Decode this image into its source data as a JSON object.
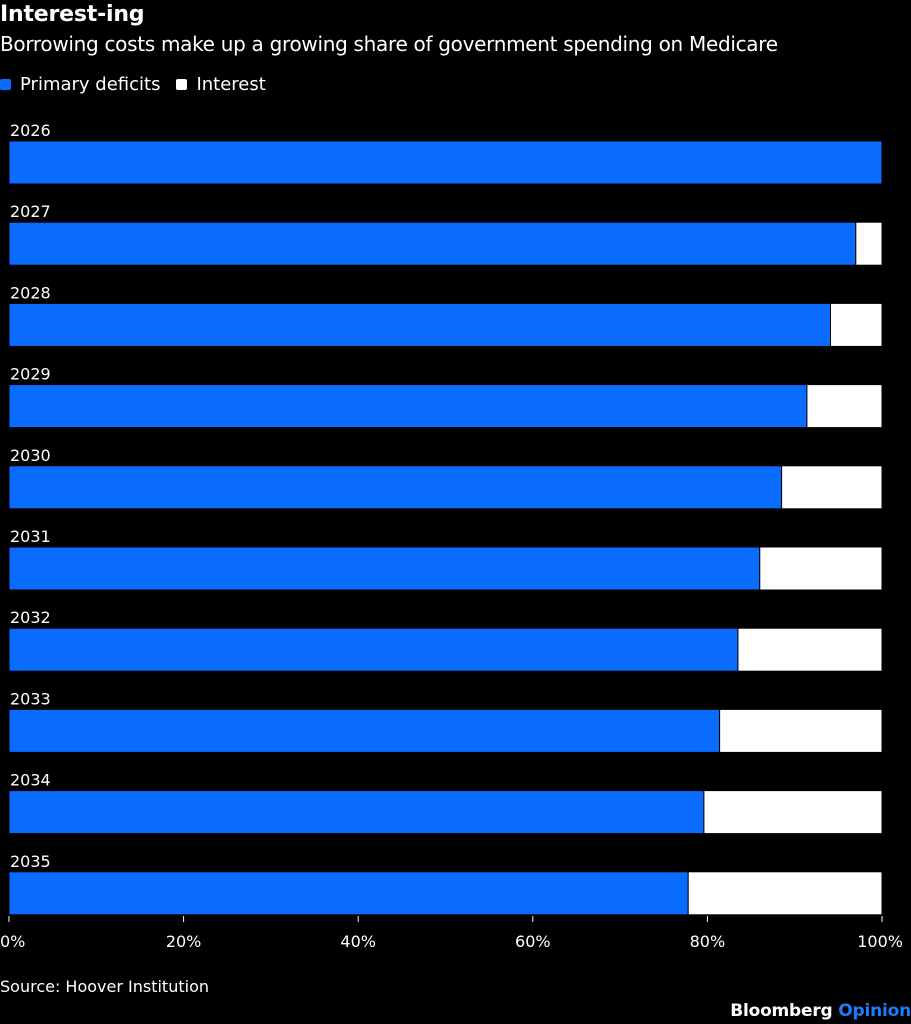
{
  "header": {
    "title": "Interest-ing",
    "subtitle": "Borrowing costs make up a growing share of government spending on Medicare"
  },
  "legend": [
    {
      "label": "Primary deficits",
      "color": "#0a6cff"
    },
    {
      "label": "Interest",
      "color": "#ffffff"
    }
  ],
  "chart_data": {
    "type": "bar",
    "orientation": "horizontal",
    "stacked": true,
    "categories": [
      "2026",
      "2027",
      "2028",
      "2029",
      "2030",
      "2031",
      "2032",
      "2033",
      "2034",
      "2035"
    ],
    "series": [
      {
        "name": "Primary deficits",
        "color": "#0a6cff",
        "values": [
          100,
          97,
          94.1,
          91.4,
          88.5,
          86.0,
          83.5,
          81.4,
          79.6,
          77.8
        ]
      },
      {
        "name": "Interest",
        "color": "#ffffff",
        "values": [
          0,
          3,
          5.9,
          8.6,
          11.5,
          14.0,
          16.5,
          18.6,
          20.4,
          22.2
        ]
      }
    ],
    "xlim": [
      0,
      100
    ],
    "xticks": [
      "0%",
      "20%",
      "40%",
      "60%",
      "80%",
      "100%"
    ],
    "legend_position": "top-left",
    "grid": false
  },
  "footer": {
    "source": "Source: Hoover Institution",
    "brand_name": "Bloomberg",
    "brand_section": "Opinion"
  }
}
